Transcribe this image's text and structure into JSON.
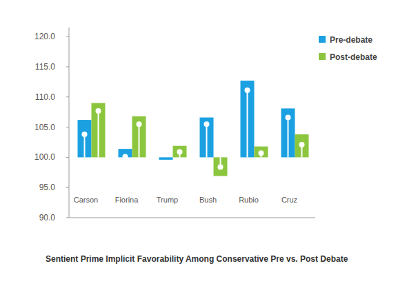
{
  "chart_data": {
    "type": "bar",
    "title": "Sentient Prime Implicit Favorability Among Conservative Pre vs. Post Debate",
    "categories": [
      "Carson",
      "Fiorina",
      "Trump",
      "Bush",
      "Rubio",
      "Cruz"
    ],
    "baseline": 100,
    "series": [
      {
        "name": "Pre-debate",
        "color": "#1ba1e2",
        "values": [
          106.2,
          101.4,
          99.6,
          106.6,
          112.7,
          108.1
        ],
        "marker_values": [
          103.8,
          100.1,
          null,
          105.5,
          111.1,
          106.6
        ]
      },
      {
        "name": "Post-debate",
        "color": "#8cc63f",
        "values": [
          109.0,
          106.8,
          101.9,
          96.9,
          101.8,
          103.8
        ],
        "marker_values": [
          107.7,
          105.5,
          100.9,
          98.4,
          100.7,
          102.1
        ]
      }
    ],
    "ylim": [
      90,
      121.5
    ],
    "yticks": [
      {
        "value": 90,
        "label": "90.0"
      },
      {
        "value": 95,
        "label": "95.0"
      },
      {
        "value": 100,
        "label": "100.0"
      },
      {
        "value": 105,
        "label": "105.0"
      },
      {
        "value": 110,
        "label": "110.0"
      },
      {
        "value": 115,
        "label": "115.0"
      },
      {
        "value": 120,
        "label": "120.0"
      }
    ],
    "grid": false,
    "legend": "top-right"
  }
}
